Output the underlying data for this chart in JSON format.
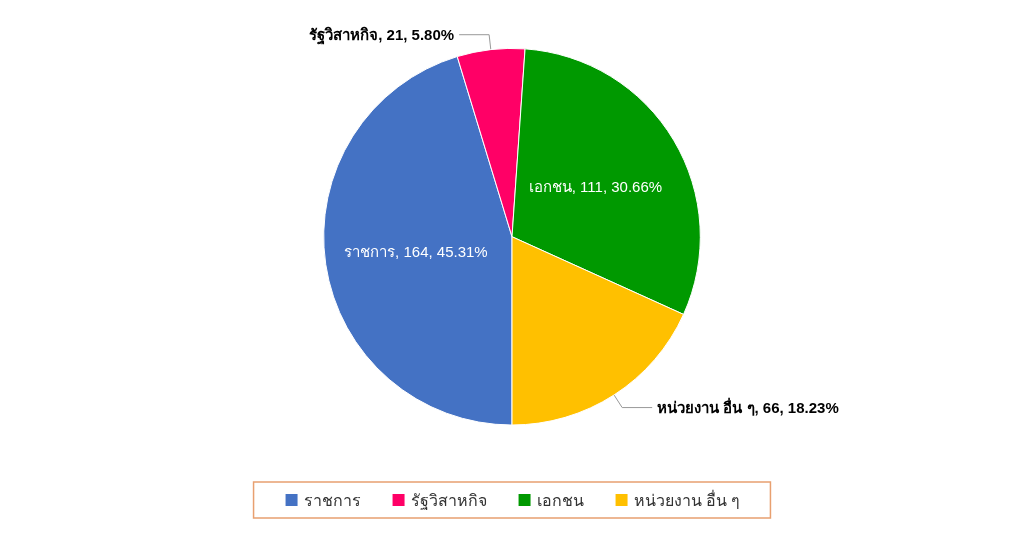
{
  "chart_data": {
    "type": "pie",
    "categories": [
      "ราชการ",
      "รัฐวิสาหกิจ",
      "เอกชน",
      "หน่วยงาน อื่น ๆ"
    ],
    "values": [
      164,
      21,
      111,
      66
    ],
    "colors": [
      "#4472c4",
      "#ff0066",
      "#009900",
      "#ffc000"
    ],
    "value_labels": [
      "ราชการ, 164, 45.31%",
      "รัฐวิสาหกิจ, 21, 5.80%",
      "เอกชน, 111, 30.66%",
      "หน่วยงาน อื่น ๆ, 66, 18.23%"
    ],
    "legend": "bottom"
  }
}
